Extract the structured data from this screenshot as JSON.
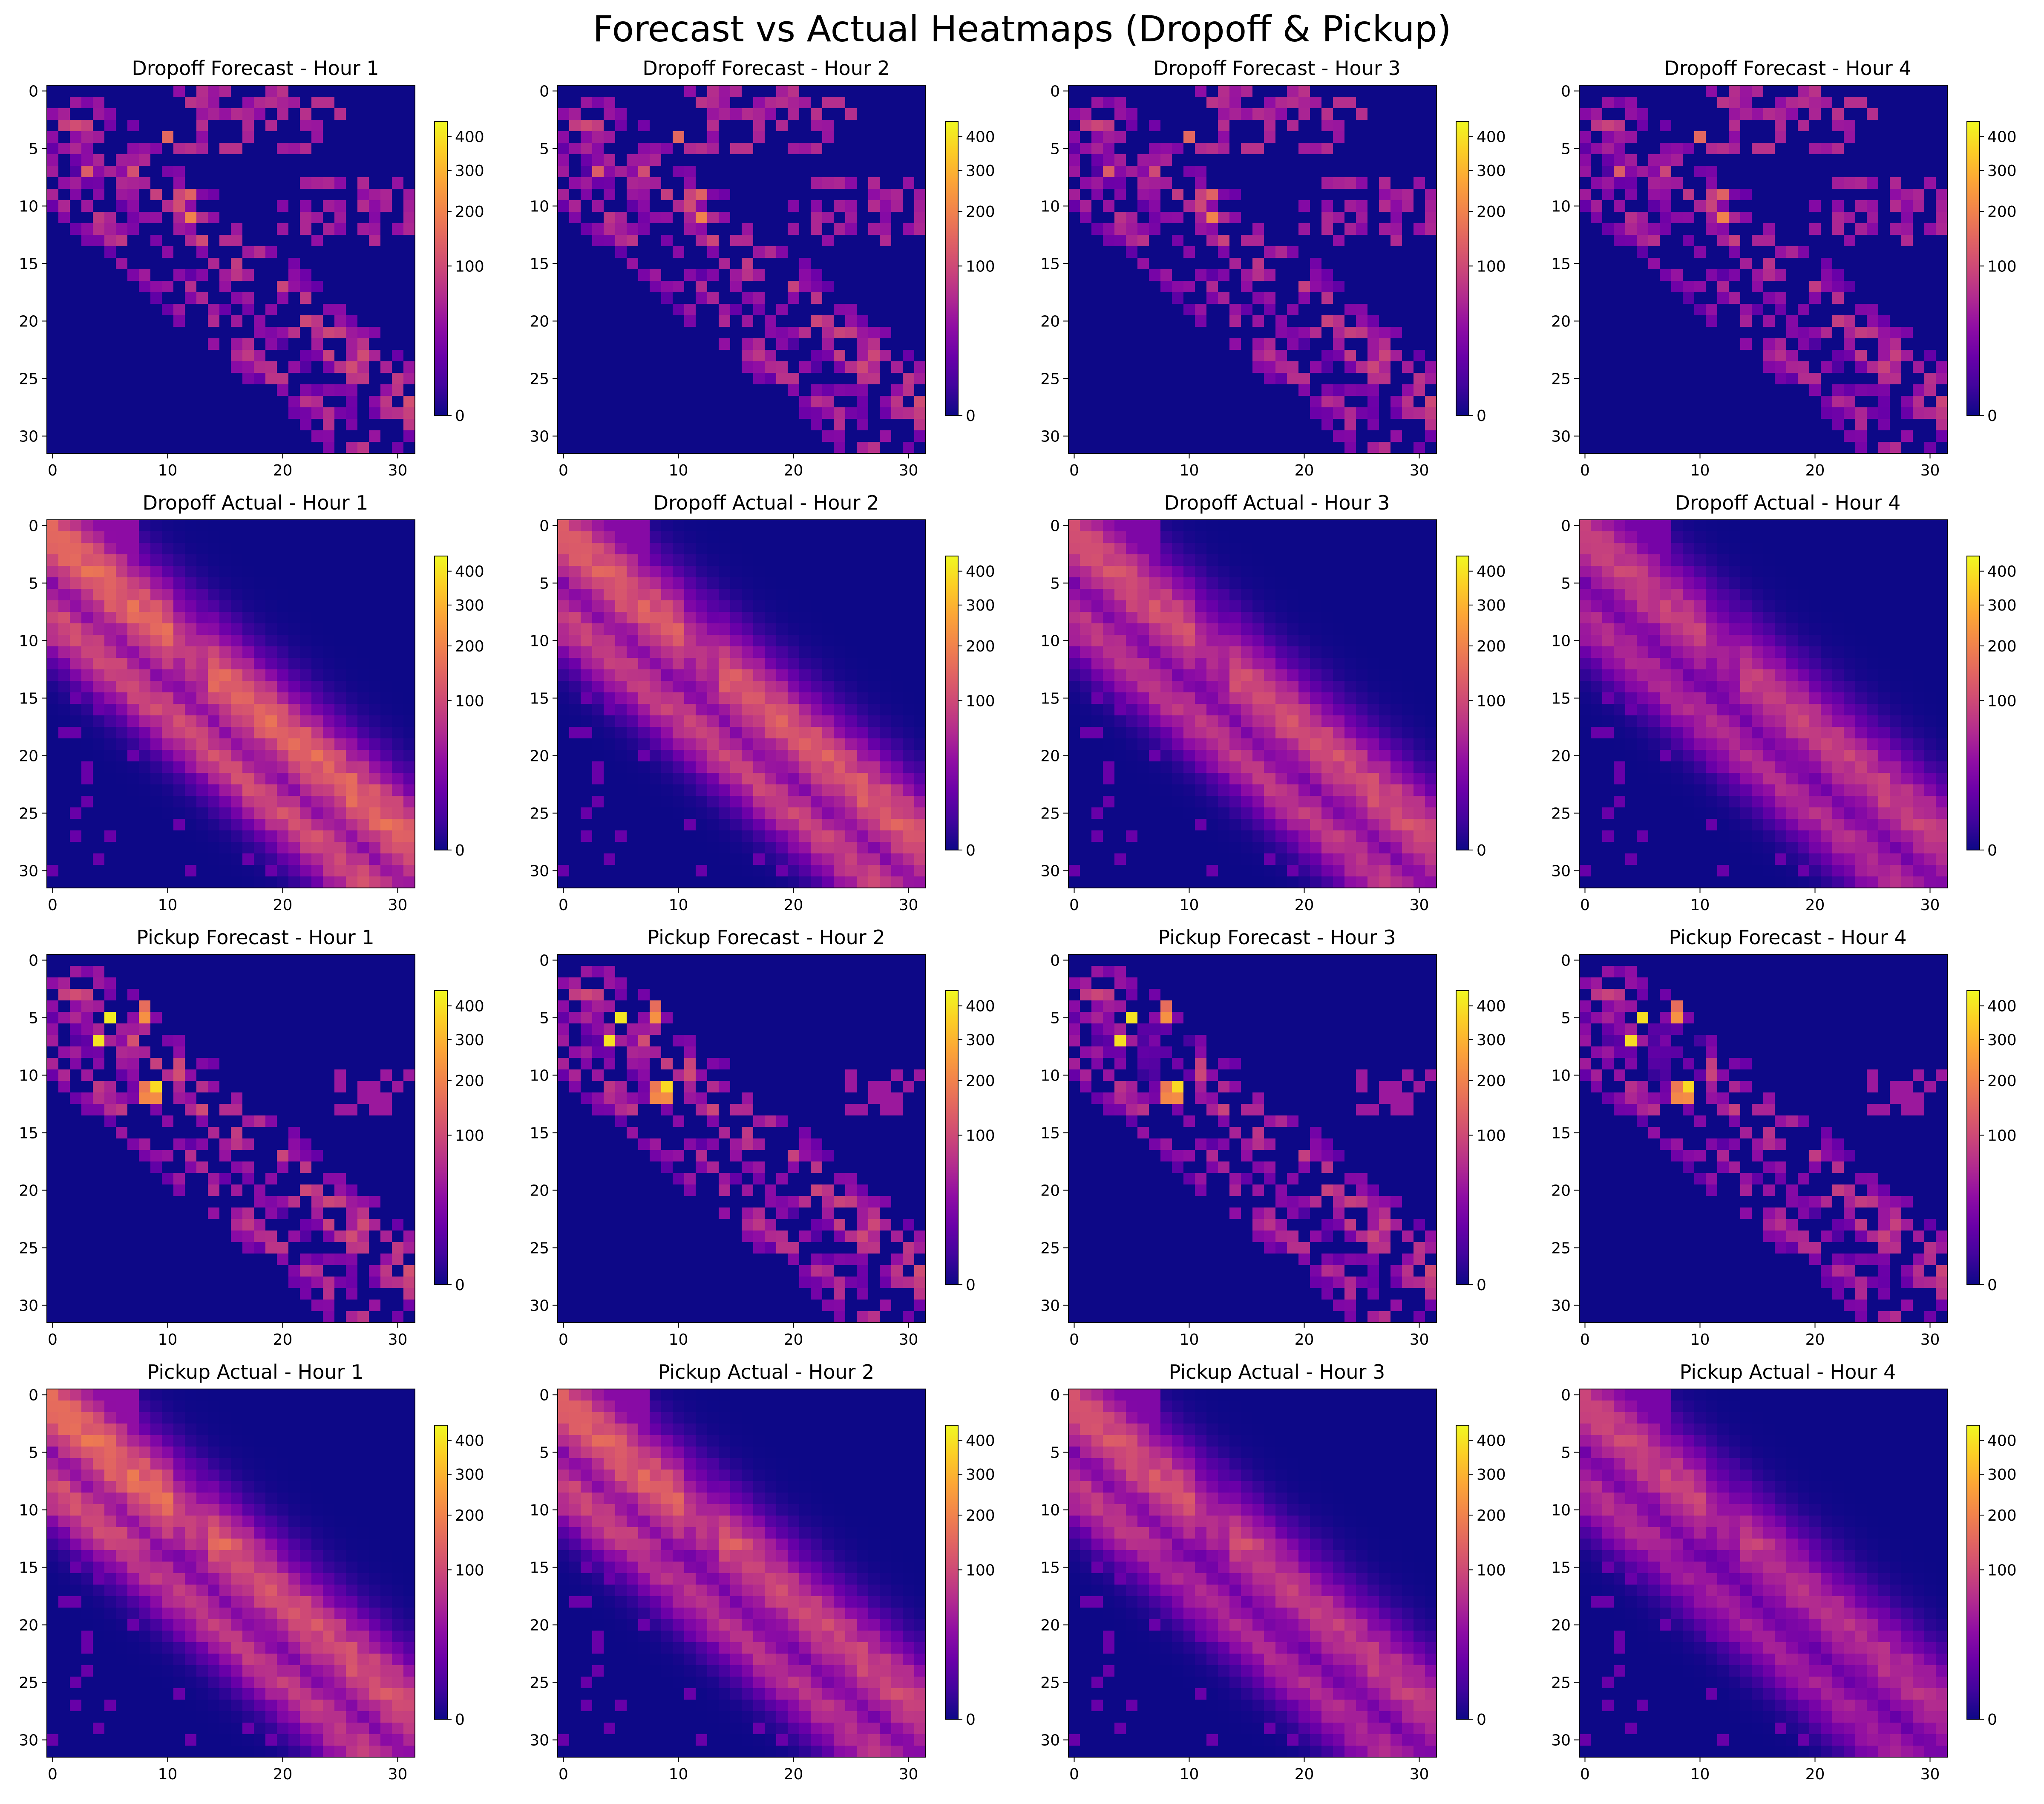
{
  "title": "Forecast vs Actual Heatmaps (Dropoff & Pickup)",
  "chart_data": {
    "type": "heatmap",
    "grid_size": 32,
    "colormap": "plasma",
    "value_range": [
      0,
      450
    ],
    "x_ticks": [
      0,
      10,
      20,
      30
    ],
    "y_ticks": [
      0,
      5,
      10,
      15,
      20,
      25,
      30
    ],
    "colorbar_ticks": [
      0,
      100,
      200,
      300,
      400
    ],
    "panels": [
      {
        "title": "Dropoff Forecast - Hour 1",
        "kind": "dropoff_forecast",
        "hour": 1
      },
      {
        "title": "Dropoff Forecast - Hour 2",
        "kind": "dropoff_forecast",
        "hour": 2
      },
      {
        "title": "Dropoff Forecast - Hour 3",
        "kind": "dropoff_forecast",
        "hour": 3
      },
      {
        "title": "Dropoff Forecast - Hour 4",
        "kind": "dropoff_forecast",
        "hour": 4
      },
      {
        "title": "Dropoff Actual - Hour 1",
        "kind": "dropoff_actual",
        "hour": 1
      },
      {
        "title": "Dropoff Actual - Hour 2",
        "kind": "dropoff_actual",
        "hour": 2
      },
      {
        "title": "Dropoff Actual - Hour 3",
        "kind": "dropoff_actual",
        "hour": 3
      },
      {
        "title": "Dropoff Actual - Hour 4",
        "kind": "dropoff_actual",
        "hour": 4
      },
      {
        "title": "Pickup Forecast - Hour 1",
        "kind": "pickup_forecast",
        "hour": 1
      },
      {
        "title": "Pickup Forecast - Hour 2",
        "kind": "pickup_forecast",
        "hour": 2
      },
      {
        "title": "Pickup Forecast - Hour 3",
        "kind": "pickup_forecast",
        "hour": 3
      },
      {
        "title": "Pickup Forecast - Hour 4",
        "kind": "pickup_forecast",
        "hour": 4
      },
      {
        "title": "Pickup Actual - Hour 1",
        "kind": "pickup_actual",
        "hour": 1
      },
      {
        "title": "Pickup Actual - Hour 2",
        "kind": "pickup_actual",
        "hour": 2
      },
      {
        "title": "Pickup Actual - Hour 3",
        "kind": "pickup_actual",
        "hour": 3
      },
      {
        "title": "Pickup Actual - Hour 4",
        "kind": "pickup_actual",
        "hour": 4
      }
    ]
  }
}
